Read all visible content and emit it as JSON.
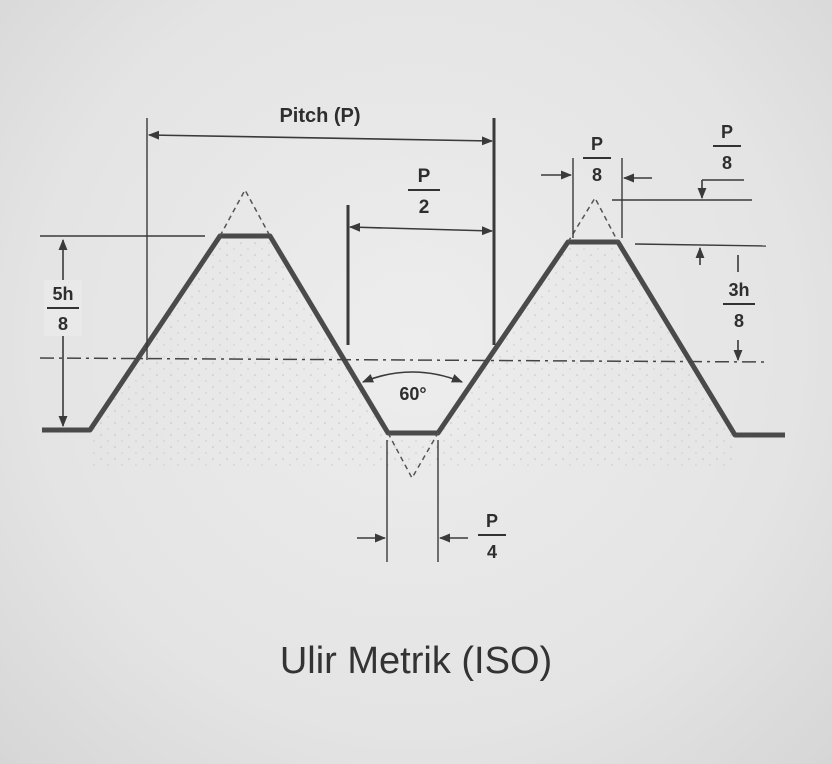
{
  "labels": {
    "pitch": "Pitch (P)",
    "half_pitch": {
      "num": "P",
      "den": "2"
    },
    "crest_flat": {
      "num": "P",
      "den": "8"
    },
    "crest_clearance": {
      "num": "P",
      "den": "8"
    },
    "left_height": {
      "num": "5h",
      "den": "8"
    },
    "right_height": {
      "num": "3h",
      "den": "8"
    },
    "angle": "60°",
    "root_flat": {
      "num": "P",
      "den": "4"
    }
  },
  "caption": "Ulir Metrik (ISO)",
  "colors": {
    "background": "#e6e6e6",
    "profile": "#4a4a4a",
    "dims": "#3a3a3a",
    "text": "#2e2e2e"
  }
}
